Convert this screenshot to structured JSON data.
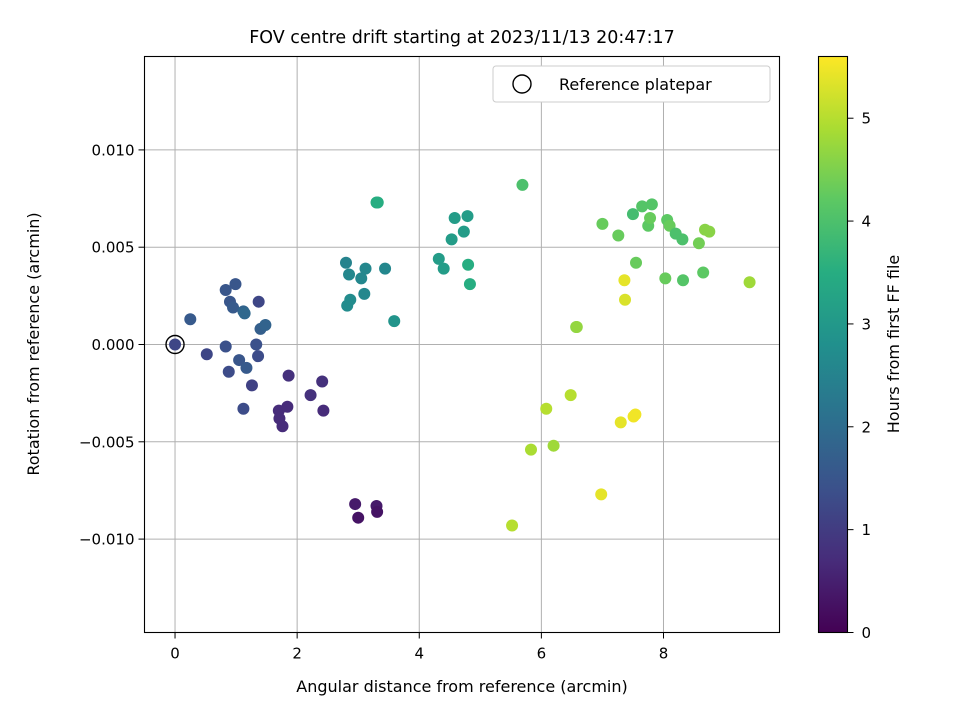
{
  "chart_data": {
    "type": "scatter",
    "title": "FOV centre drift starting at 2023/11/13 20:47:17",
    "xlabel": "Angular distance from reference (arcmin)",
    "ylabel": "Rotation from reference (arcmin)",
    "xlim": [
      -0.5,
      9.9
    ],
    "ylim": [
      -0.0148,
      0.0148
    ],
    "x_ticks": [
      0,
      2,
      4,
      6,
      8
    ],
    "x_tick_labels": [
      "0",
      "2",
      "4",
      "6",
      "8"
    ],
    "y_ticks": [
      -0.01,
      -0.005,
      0.0,
      0.005,
      0.01
    ],
    "y_tick_labels": [
      "−0.010",
      "−0.005",
      "0.000",
      "0.005",
      "0.010"
    ],
    "grid": true,
    "legend": {
      "placement": "top-right",
      "entries": [
        "Reference platepar"
      ]
    },
    "reference_point": {
      "x": 0.0,
      "y": 0.0,
      "c": 0.0
    },
    "colorbar": {
      "label": "Hours from first FF file",
      "range": [
        0,
        5.6
      ],
      "ticks": [
        0,
        1,
        2,
        3,
        4,
        5
      ],
      "tick_labels": [
        "0",
        "1",
        "2",
        "3",
        "4",
        "5"
      ],
      "colormap": "viridis"
    },
    "points": [
      {
        "x": 0.0,
        "y": 0.0,
        "c": 1.2
      },
      {
        "x": 0.25,
        "y": 0.0013,
        "c": 1.6
      },
      {
        "x": 0.52,
        "y": -0.0005,
        "c": 1.2
      },
      {
        "x": 0.83,
        "y": 0.0028,
        "c": 1.5
      },
      {
        "x": 0.9,
        "y": 0.0022,
        "c": 1.5
      },
      {
        "x": 0.95,
        "y": 0.0019,
        "c": 1.6
      },
      {
        "x": 0.99,
        "y": 0.0031,
        "c": 1.5
      },
      {
        "x": 1.12,
        "y": 0.0017,
        "c": 1.8
      },
      {
        "x": 1.14,
        "y": 0.0016,
        "c": 1.9
      },
      {
        "x": 0.83,
        "y": -0.0001,
        "c": 1.4
      },
      {
        "x": 0.88,
        "y": -0.0014,
        "c": 1.3
      },
      {
        "x": 1.05,
        "y": -0.0008,
        "c": 1.5
      },
      {
        "x": 1.17,
        "y": -0.0012,
        "c": 1.6
      },
      {
        "x": 1.12,
        "y": -0.0033,
        "c": 1.3
      },
      {
        "x": 1.26,
        "y": -0.0021,
        "c": 1.1
      },
      {
        "x": 1.33,
        "y": 0.0,
        "c": 1.4
      },
      {
        "x": 1.36,
        "y": -0.0006,
        "c": 1.3
      },
      {
        "x": 1.37,
        "y": 0.0022,
        "c": 1.2
      },
      {
        "x": 1.4,
        "y": 0.0008,
        "c": 1.7
      },
      {
        "x": 1.48,
        "y": 0.001,
        "c": 1.8
      },
      {
        "x": 1.7,
        "y": -0.0034,
        "c": 0.7
      },
      {
        "x": 1.71,
        "y": -0.0038,
        "c": 0.7
      },
      {
        "x": 1.76,
        "y": -0.0042,
        "c": 0.7
      },
      {
        "x": 1.84,
        "y": -0.0032,
        "c": 0.7
      },
      {
        "x": 1.86,
        "y": -0.0016,
        "c": 0.8
      },
      {
        "x": 2.22,
        "y": -0.0026,
        "c": 0.8
      },
      {
        "x": 2.41,
        "y": -0.0019,
        "c": 0.8
      },
      {
        "x": 2.43,
        "y": -0.0034,
        "c": 0.7
      },
      {
        "x": 2.95,
        "y": -0.0082,
        "c": 0.4
      },
      {
        "x": 3.0,
        "y": -0.0089,
        "c": 0.3
      },
      {
        "x": 3.3,
        "y": -0.0083,
        "c": 0.4
      },
      {
        "x": 3.31,
        "y": -0.0086,
        "c": 0.3
      },
      {
        "x": 2.8,
        "y": 0.0042,
        "c": 2.5
      },
      {
        "x": 2.85,
        "y": 0.0036,
        "c": 2.6
      },
      {
        "x": 2.82,
        "y": 0.002,
        "c": 2.7
      },
      {
        "x": 2.87,
        "y": 0.0023,
        "c": 2.7
      },
      {
        "x": 3.05,
        "y": 0.0034,
        "c": 2.6
      },
      {
        "x": 3.12,
        "y": 0.0039,
        "c": 2.6
      },
      {
        "x": 3.1,
        "y": 0.0026,
        "c": 2.6
      },
      {
        "x": 3.3,
        "y": 0.0073,
        "c": 3.5
      },
      {
        "x": 3.32,
        "y": 0.0073,
        "c": 3.5
      },
      {
        "x": 3.44,
        "y": 0.0039,
        "c": 2.6
      },
      {
        "x": 3.59,
        "y": 0.0012,
        "c": 2.9
      },
      {
        "x": 4.32,
        "y": 0.0044,
        "c": 3.1
      },
      {
        "x": 4.4,
        "y": 0.0039,
        "c": 3.1
      },
      {
        "x": 4.53,
        "y": 0.0054,
        "c": 3.1
      },
      {
        "x": 4.58,
        "y": 0.0065,
        "c": 3.1
      },
      {
        "x": 4.73,
        "y": 0.0058,
        "c": 3.1
      },
      {
        "x": 4.79,
        "y": 0.0066,
        "c": 3.1
      },
      {
        "x": 4.8,
        "y": 0.0041,
        "c": 3.5
      },
      {
        "x": 4.83,
        "y": 0.0031,
        "c": 3.5
      },
      {
        "x": 5.69,
        "y": 0.0082,
        "c": 4.0
      },
      {
        "x": 5.52,
        "y": -0.0093,
        "c": 5.0
      },
      {
        "x": 5.83,
        "y": -0.0054,
        "c": 4.9
      },
      {
        "x": 6.08,
        "y": -0.0033,
        "c": 5.0
      },
      {
        "x": 6.2,
        "y": -0.0052,
        "c": 4.8
      },
      {
        "x": 6.48,
        "y": -0.0026,
        "c": 5.0
      },
      {
        "x": 6.57,
        "y": 0.0009,
        "c": 4.6
      },
      {
        "x": 6.58,
        "y": 0.0009,
        "c": 4.7
      },
      {
        "x": 6.98,
        "y": -0.0077,
        "c": 5.4
      },
      {
        "x": 7.0,
        "y": 0.0062,
        "c": 4.3
      },
      {
        "x": 7.26,
        "y": 0.0056,
        "c": 4.3
      },
      {
        "x": 7.3,
        "y": -0.004,
        "c": 5.4
      },
      {
        "x": 7.36,
        "y": 0.0033,
        "c": 5.4
      },
      {
        "x": 7.37,
        "y": 0.0023,
        "c": 5.3
      },
      {
        "x": 7.5,
        "y": 0.0067,
        "c": 3.9
      },
      {
        "x": 7.51,
        "y": -0.0037,
        "c": 5.5
      },
      {
        "x": 7.54,
        "y": -0.0036,
        "c": 5.5
      },
      {
        "x": 7.55,
        "y": 0.0042,
        "c": 4.3
      },
      {
        "x": 7.65,
        "y": 0.0071,
        "c": 4.1
      },
      {
        "x": 7.75,
        "y": 0.0061,
        "c": 4.2
      },
      {
        "x": 7.78,
        "y": 0.0065,
        "c": 4.3
      },
      {
        "x": 7.81,
        "y": 0.0072,
        "c": 4.1
      },
      {
        "x": 8.03,
        "y": 0.0034,
        "c": 4.3
      },
      {
        "x": 8.06,
        "y": 0.0064,
        "c": 4.2
      },
      {
        "x": 8.1,
        "y": 0.0061,
        "c": 4.3
      },
      {
        "x": 8.2,
        "y": 0.0057,
        "c": 4.0
      },
      {
        "x": 8.31,
        "y": 0.0054,
        "c": 4.0
      },
      {
        "x": 8.32,
        "y": 0.0033,
        "c": 4.1
      },
      {
        "x": 8.58,
        "y": 0.0052,
        "c": 4.4
      },
      {
        "x": 8.65,
        "y": 0.0037,
        "c": 4.2
      },
      {
        "x": 8.68,
        "y": 0.0059,
        "c": 4.6
      },
      {
        "x": 8.75,
        "y": 0.0058,
        "c": 4.6
      },
      {
        "x": 9.41,
        "y": 0.0032,
        "c": 4.8
      }
    ]
  }
}
